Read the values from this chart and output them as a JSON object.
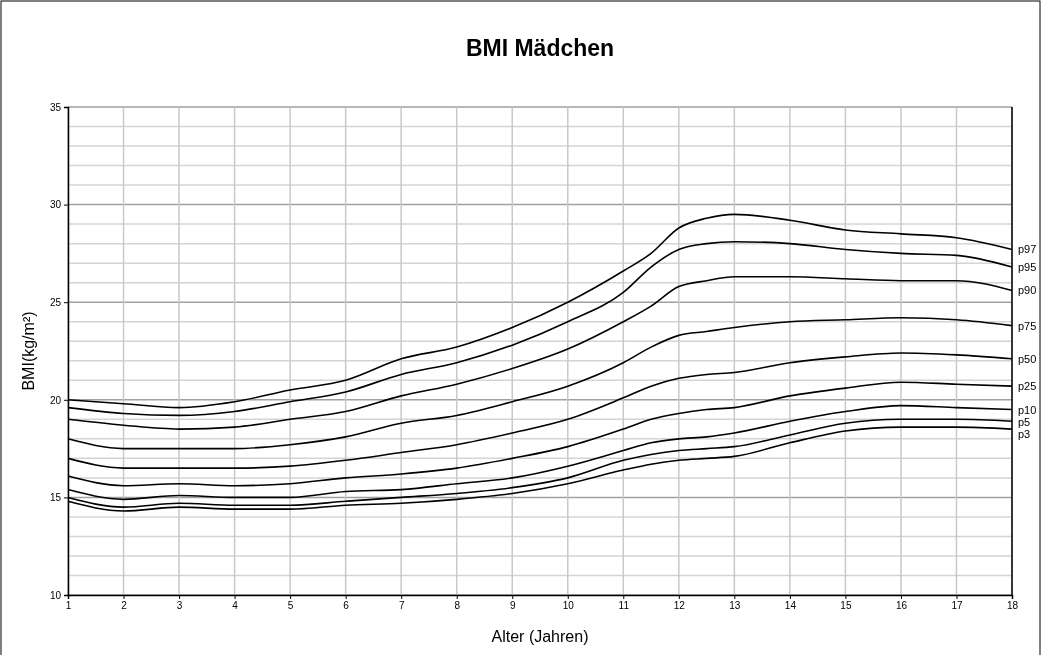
{
  "chart_data": {
    "type": "line",
    "title": "BMI Mädchen",
    "xlabel": "Alter (Jahren)",
    "ylabel": "BMI(kg/m²)",
    "x": [
      1,
      2,
      3,
      4,
      5,
      6,
      7,
      8,
      9,
      10,
      11,
      11.5,
      12,
      12.5,
      13,
      14,
      15,
      16,
      17,
      18
    ],
    "series": [
      {
        "name": "p97",
        "color": "#000000",
        "values": [
          20.0,
          19.8,
          19.6,
          19.9,
          20.5,
          21.0,
          22.1,
          22.7,
          23.7,
          25.0,
          26.6,
          27.5,
          28.8,
          29.3,
          29.5,
          29.2,
          28.7,
          28.5,
          28.3,
          27.7
        ]
      },
      {
        "name": "p95",
        "color": "#000000",
        "values": [
          19.6,
          19.3,
          19.2,
          19.4,
          19.9,
          20.4,
          21.3,
          21.9,
          22.8,
          24.0,
          25.5,
          26.8,
          27.7,
          28.0,
          28.1,
          28.0,
          27.7,
          27.5,
          27.4,
          26.8
        ]
      },
      {
        "name": "p90",
        "color": "#000000",
        "values": [
          19.0,
          18.7,
          18.5,
          18.6,
          19.0,
          19.4,
          20.2,
          20.8,
          21.6,
          22.6,
          24.0,
          24.8,
          25.8,
          26.1,
          26.3,
          26.3,
          26.2,
          26.1,
          26.1,
          25.6
        ]
      },
      {
        "name": "p75",
        "color": "#000000",
        "values": [
          18.0,
          17.5,
          17.5,
          17.5,
          17.7,
          18.1,
          18.8,
          19.2,
          19.9,
          20.7,
          21.9,
          22.7,
          23.3,
          23.5,
          23.7,
          24.0,
          24.1,
          24.2,
          24.1,
          23.8
        ]
      },
      {
        "name": "p50",
        "color": "#000000",
        "values": [
          17.0,
          16.5,
          16.5,
          16.5,
          16.6,
          16.9,
          17.3,
          17.7,
          18.3,
          19.0,
          20.1,
          20.7,
          21.1,
          21.3,
          21.4,
          21.9,
          22.2,
          22.4,
          22.3,
          22.1
        ]
      },
      {
        "name": "p25",
        "color": "#000000",
        "values": [
          16.1,
          15.6,
          15.7,
          15.6,
          15.7,
          16.0,
          16.2,
          16.5,
          17.0,
          17.6,
          18.5,
          19.0,
          19.3,
          19.5,
          19.6,
          20.2,
          20.6,
          20.9,
          20.8,
          20.7
        ]
      },
      {
        "name": "p10",
        "color": "#000000",
        "values": [
          15.4,
          14.9,
          15.1,
          15.0,
          15.0,
          15.3,
          15.4,
          15.7,
          16.0,
          16.6,
          17.4,
          17.8,
          18.0,
          18.1,
          18.3,
          18.9,
          19.4,
          19.7,
          19.6,
          19.5
        ]
      },
      {
        "name": "p5",
        "color": "#000000",
        "values": [
          15.0,
          14.5,
          14.7,
          14.6,
          14.6,
          14.8,
          15.0,
          15.2,
          15.5,
          16.0,
          16.9,
          17.2,
          17.4,
          17.5,
          17.6,
          18.2,
          18.8,
          19.0,
          19.0,
          18.9
        ]
      },
      {
        "name": "p3",
        "color": "#000000",
        "values": [
          14.8,
          14.3,
          14.5,
          14.4,
          14.4,
          14.6,
          14.7,
          14.9,
          15.2,
          15.7,
          16.4,
          16.7,
          16.9,
          17.0,
          17.1,
          17.8,
          18.4,
          18.6,
          18.6,
          18.5
        ]
      }
    ],
    "xlim": [
      1,
      18
    ],
    "xticks": [
      1,
      2,
      3,
      4,
      5,
      6,
      7,
      8,
      9,
      10,
      11,
      12,
      13,
      14,
      15,
      16,
      17,
      18
    ],
    "ylim": [
      10,
      35
    ],
    "yticks": [
      10,
      15,
      20,
      25,
      30,
      35
    ],
    "grid": true,
    "marker": "none",
    "line_style": "solid"
  }
}
